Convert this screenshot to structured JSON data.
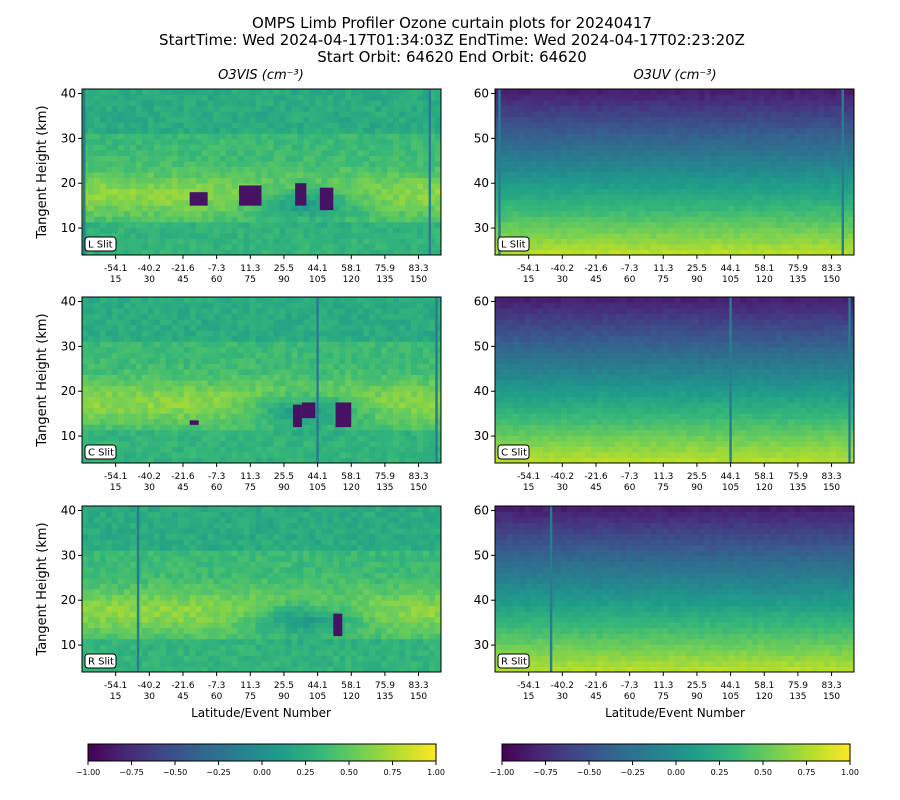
{
  "figure": {
    "title_lines": [
      "OMPS Limb Profiler Ozone curtain plots for 20240417",
      "StartTime: Wed 2024-04-17T01:34:03Z  EndTime: Wed 2024-04-17T02:23:20Z",
      "Start Orbit: 64620 End Orbit: 64620"
    ],
    "col_titles": [
      "O3VIS (cm⁻³)",
      "O3UV (cm⁻³)"
    ],
    "xlabel": "Latitude/Event Number",
    "ylabel": "Tangent Height (km)"
  },
  "chart_data": {
    "type": "heatmap",
    "colormap": "viridis",
    "colorbar": {
      "range": [
        -1.0,
        1.0
      ],
      "ticks": [
        "−1.00",
        "−0.75",
        "−0.50",
        "−0.25",
        "0.00",
        "0.25",
        "0.50",
        "0.75",
        "1.00"
      ]
    },
    "x_axis": {
      "range": [
        0,
        160
      ],
      "event_ticks": [
        15,
        30,
        45,
        60,
        75,
        90,
        105,
        120,
        135,
        150
      ],
      "latitude_labels": [
        "-54.1",
        "-40.2",
        "-21.6",
        "-7.3",
        "11.3",
        "25.5",
        "44.1",
        "58.1",
        "75.9",
        "83.3"
      ]
    },
    "panels": [
      {
        "product": "O3VIS",
        "slit": "L Slit",
        "ylim": [
          4,
          41
        ],
        "yticks": [
          10,
          20,
          30,
          40
        ],
        "stripes": [
          1,
          155
        ]
      },
      {
        "product": "O3UV",
        "slit": "L Slit",
        "ylim": [
          24,
          61
        ],
        "yticks": [
          30,
          40,
          50,
          60
        ],
        "stripes": [
          2,
          155
        ]
      },
      {
        "product": "O3VIS",
        "slit": "C Slit",
        "ylim": [
          4,
          41
        ],
        "yticks": [
          10,
          20,
          30,
          40
        ],
        "stripes": [
          105,
          158
        ]
      },
      {
        "product": "O3UV",
        "slit": "C Slit",
        "ylim": [
          24,
          61
        ],
        "yticks": [
          30,
          40,
          50,
          60
        ],
        "stripes": [
          105,
          158
        ]
      },
      {
        "product": "O3VIS",
        "slit": "R Slit",
        "ylim": [
          4,
          41
        ],
        "yticks": [
          10,
          20,
          30,
          40
        ],
        "stripes": [
          25
        ]
      },
      {
        "product": "O3UV",
        "slit": "R Slit",
        "ylim": [
          24,
          61
        ],
        "yticks": [
          30,
          40,
          50,
          60
        ],
        "stripes": [
          25
        ]
      }
    ]
  }
}
